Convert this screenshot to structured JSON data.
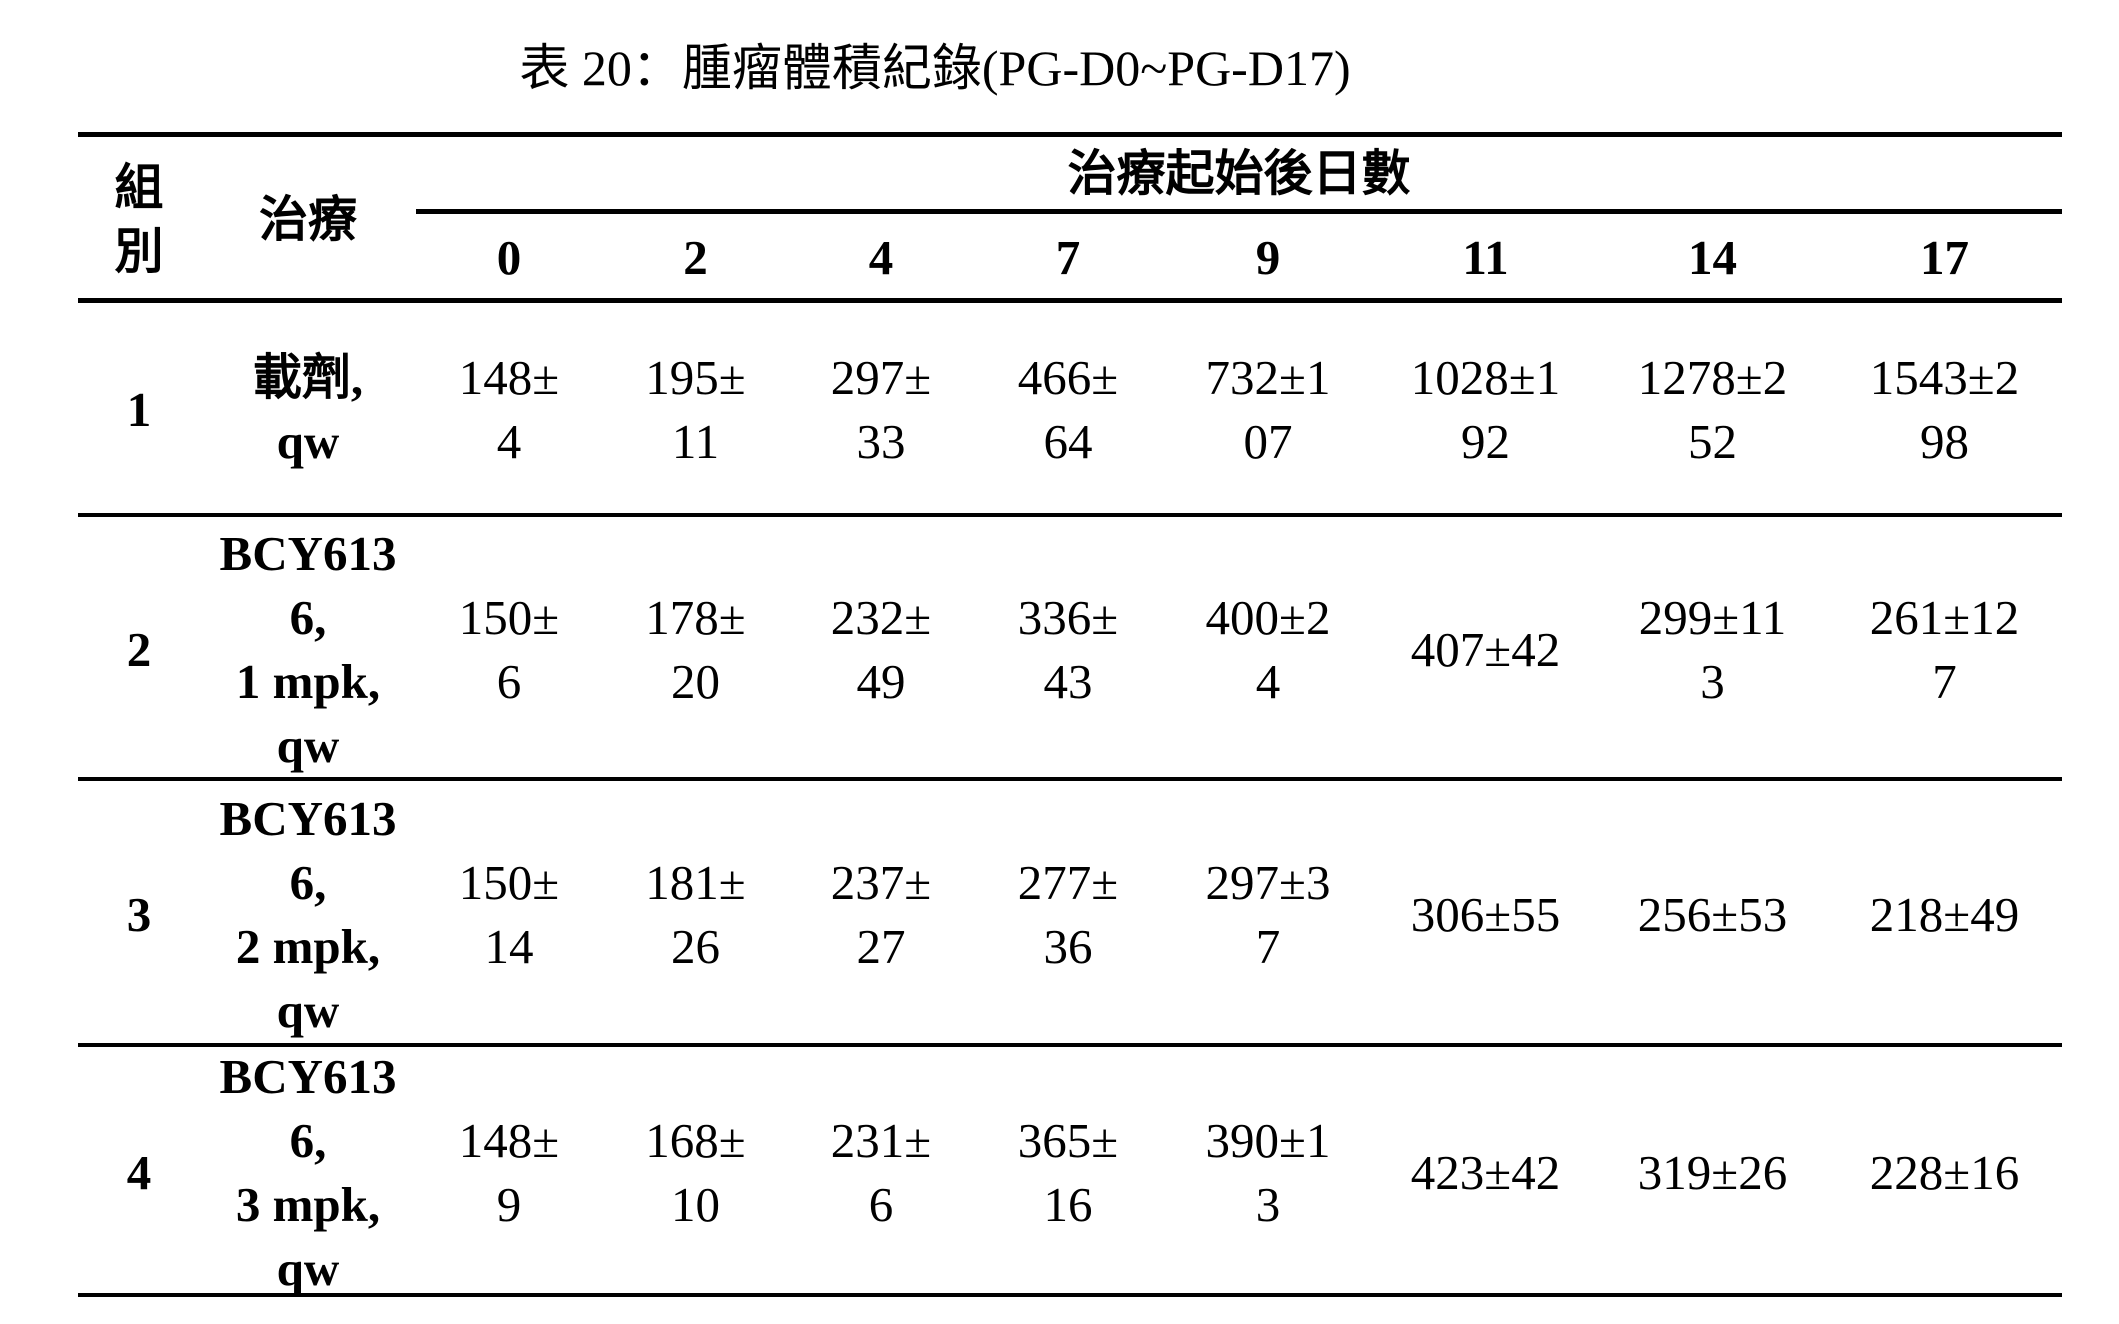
{
  "title": "表 20：腫瘤體積紀錄(PG-D0~PG-D17)",
  "header": {
    "group": "組\n別",
    "treatment": "治療",
    "days_caption": "治療起始後日數",
    "days": [
      "0",
      "2",
      "4",
      "7",
      "9",
      "11",
      "14",
      "17"
    ]
  },
  "rows": [
    {
      "group": "1",
      "treatment": "載劑,\nqw",
      "values": [
        "148±\n4",
        "195±\n11",
        "297±\n33",
        "466±\n64",
        "732±1\n07",
        "1028±1\n92",
        "1278±2\n52",
        "1543±2\n98"
      ]
    },
    {
      "group": "2",
      "treatment": "BCY613\n6,\n1 mpk,\nqw",
      "values": [
        "150±\n6",
        "178±\n20",
        "232±\n49",
        "336±\n43",
        "400±2\n4",
        "407±42",
        "299±11\n3",
        "261±12\n7"
      ]
    },
    {
      "group": "3",
      "treatment": "BCY613\n6,\n2 mpk,\nqw",
      "values": [
        "150±\n14",
        "181±\n26",
        "237±\n27",
        "277±\n36",
        "297±3\n7",
        "306±55",
        "256±53",
        "218±49"
      ]
    },
    {
      "group": "4",
      "treatment": "BCY613\n6,\n3 mpk,\nqw",
      "values": [
        "148±\n9",
        "168±\n10",
        "231±\n6",
        "365±\n16",
        "390±1\n3",
        "423±42",
        "319±26",
        "228±16"
      ]
    }
  ]
}
